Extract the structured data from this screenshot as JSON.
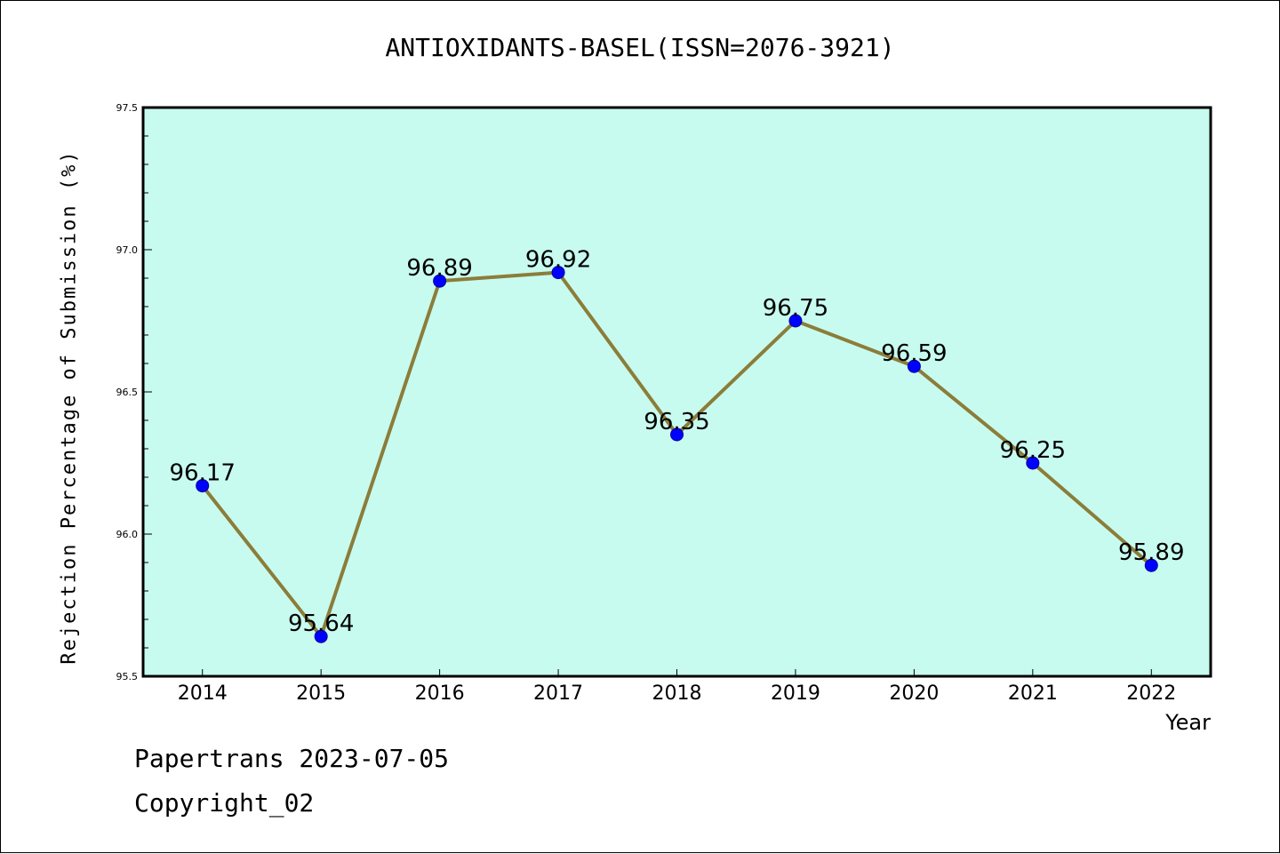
{
  "title": "ANTIOXIDANTS-BASEL(ISSN=2076-3921)",
  "footer": {
    "line1": "Papertrans 2023-07-05",
    "line2": "Copyright_02"
  },
  "chart_data": {
    "type": "line",
    "title": "ANTIOXIDANTS-BASEL(ISSN=2076-3921)",
    "xlabel": "Year",
    "ylabel": "Rejection Percentage of Submission (%)",
    "categories": [
      "2014",
      "2015",
      "2016",
      "2017",
      "2018",
      "2019",
      "2020",
      "2021",
      "2022"
    ],
    "series": [
      {
        "values": [
          96.17,
          95.64,
          96.89,
          96.92,
          96.35,
          96.75,
          96.59,
          96.25,
          95.89
        ]
      }
    ],
    "data_labels": [
      "96.17",
      "95.64",
      "96.89",
      "96.92",
      "96.35",
      "96.75",
      "96.59",
      "96.25",
      "95.89"
    ],
    "yticks": [
      "95.5",
      "96.0",
      "96.5",
      "97.0",
      "97.5"
    ],
    "ylim": [
      95.5,
      97.5
    ],
    "grid": false,
    "colors": {
      "background": "#c8fbef",
      "line": "#8b7d3a",
      "marker": "#0000ff"
    }
  }
}
